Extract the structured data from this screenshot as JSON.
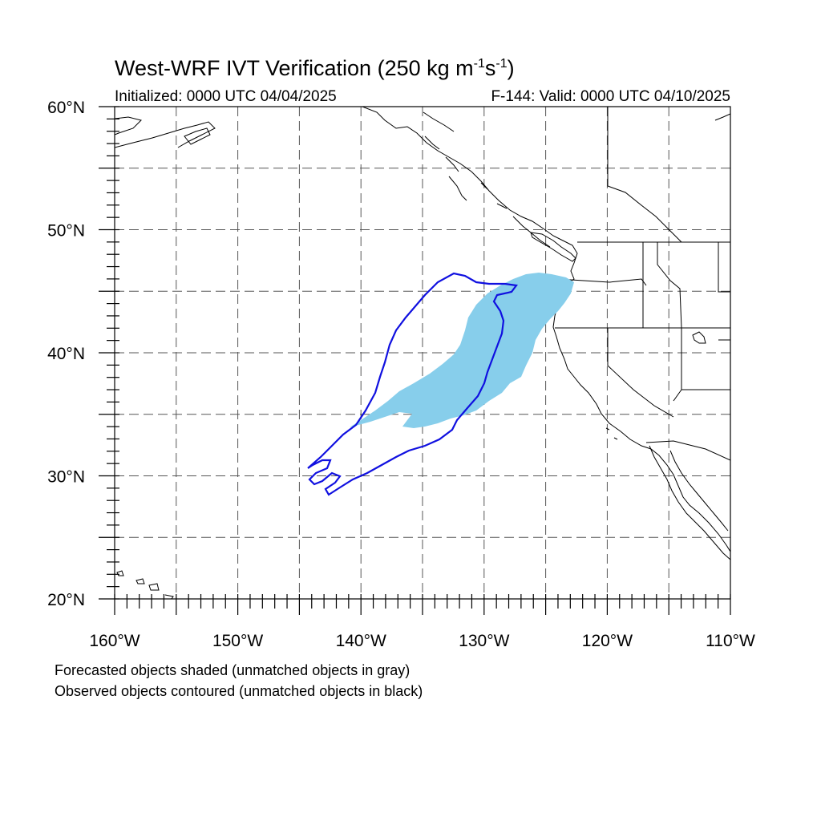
{
  "header": {
    "title_main": "West-WRF IVT Verification (250 kg m",
    "title_sup1": "-1",
    "title_mid": "s",
    "title_sup2": "-1",
    "title_end": ")",
    "initialized": "Initialized: 0000 UTC 04/04/2025",
    "valid": "F-144: Valid: 0000 UTC 04/10/2025"
  },
  "axes": {
    "lon_labels": [
      "160°W",
      "150°W",
      "140°W",
      "130°W",
      "120°W",
      "110°W"
    ],
    "lat_labels": [
      "60°N",
      "50°N",
      "40°N",
      "30°N",
      "20°N"
    ],
    "lon_range": [
      -160,
      -110
    ],
    "lat_range": [
      20,
      60
    ],
    "grid_step_deg": 5,
    "grid": "dashed"
  },
  "legend": {
    "forecast_note": "Forecasted objects shaded (unmatched objects in gray)",
    "observed_note": "Observed objects contoured (unmatched objects in black)"
  },
  "colors": {
    "forecast_fill": "#87ceeb",
    "observed_contour": "#1010e0",
    "coastline": "#000000",
    "grid": "#555555"
  }
}
